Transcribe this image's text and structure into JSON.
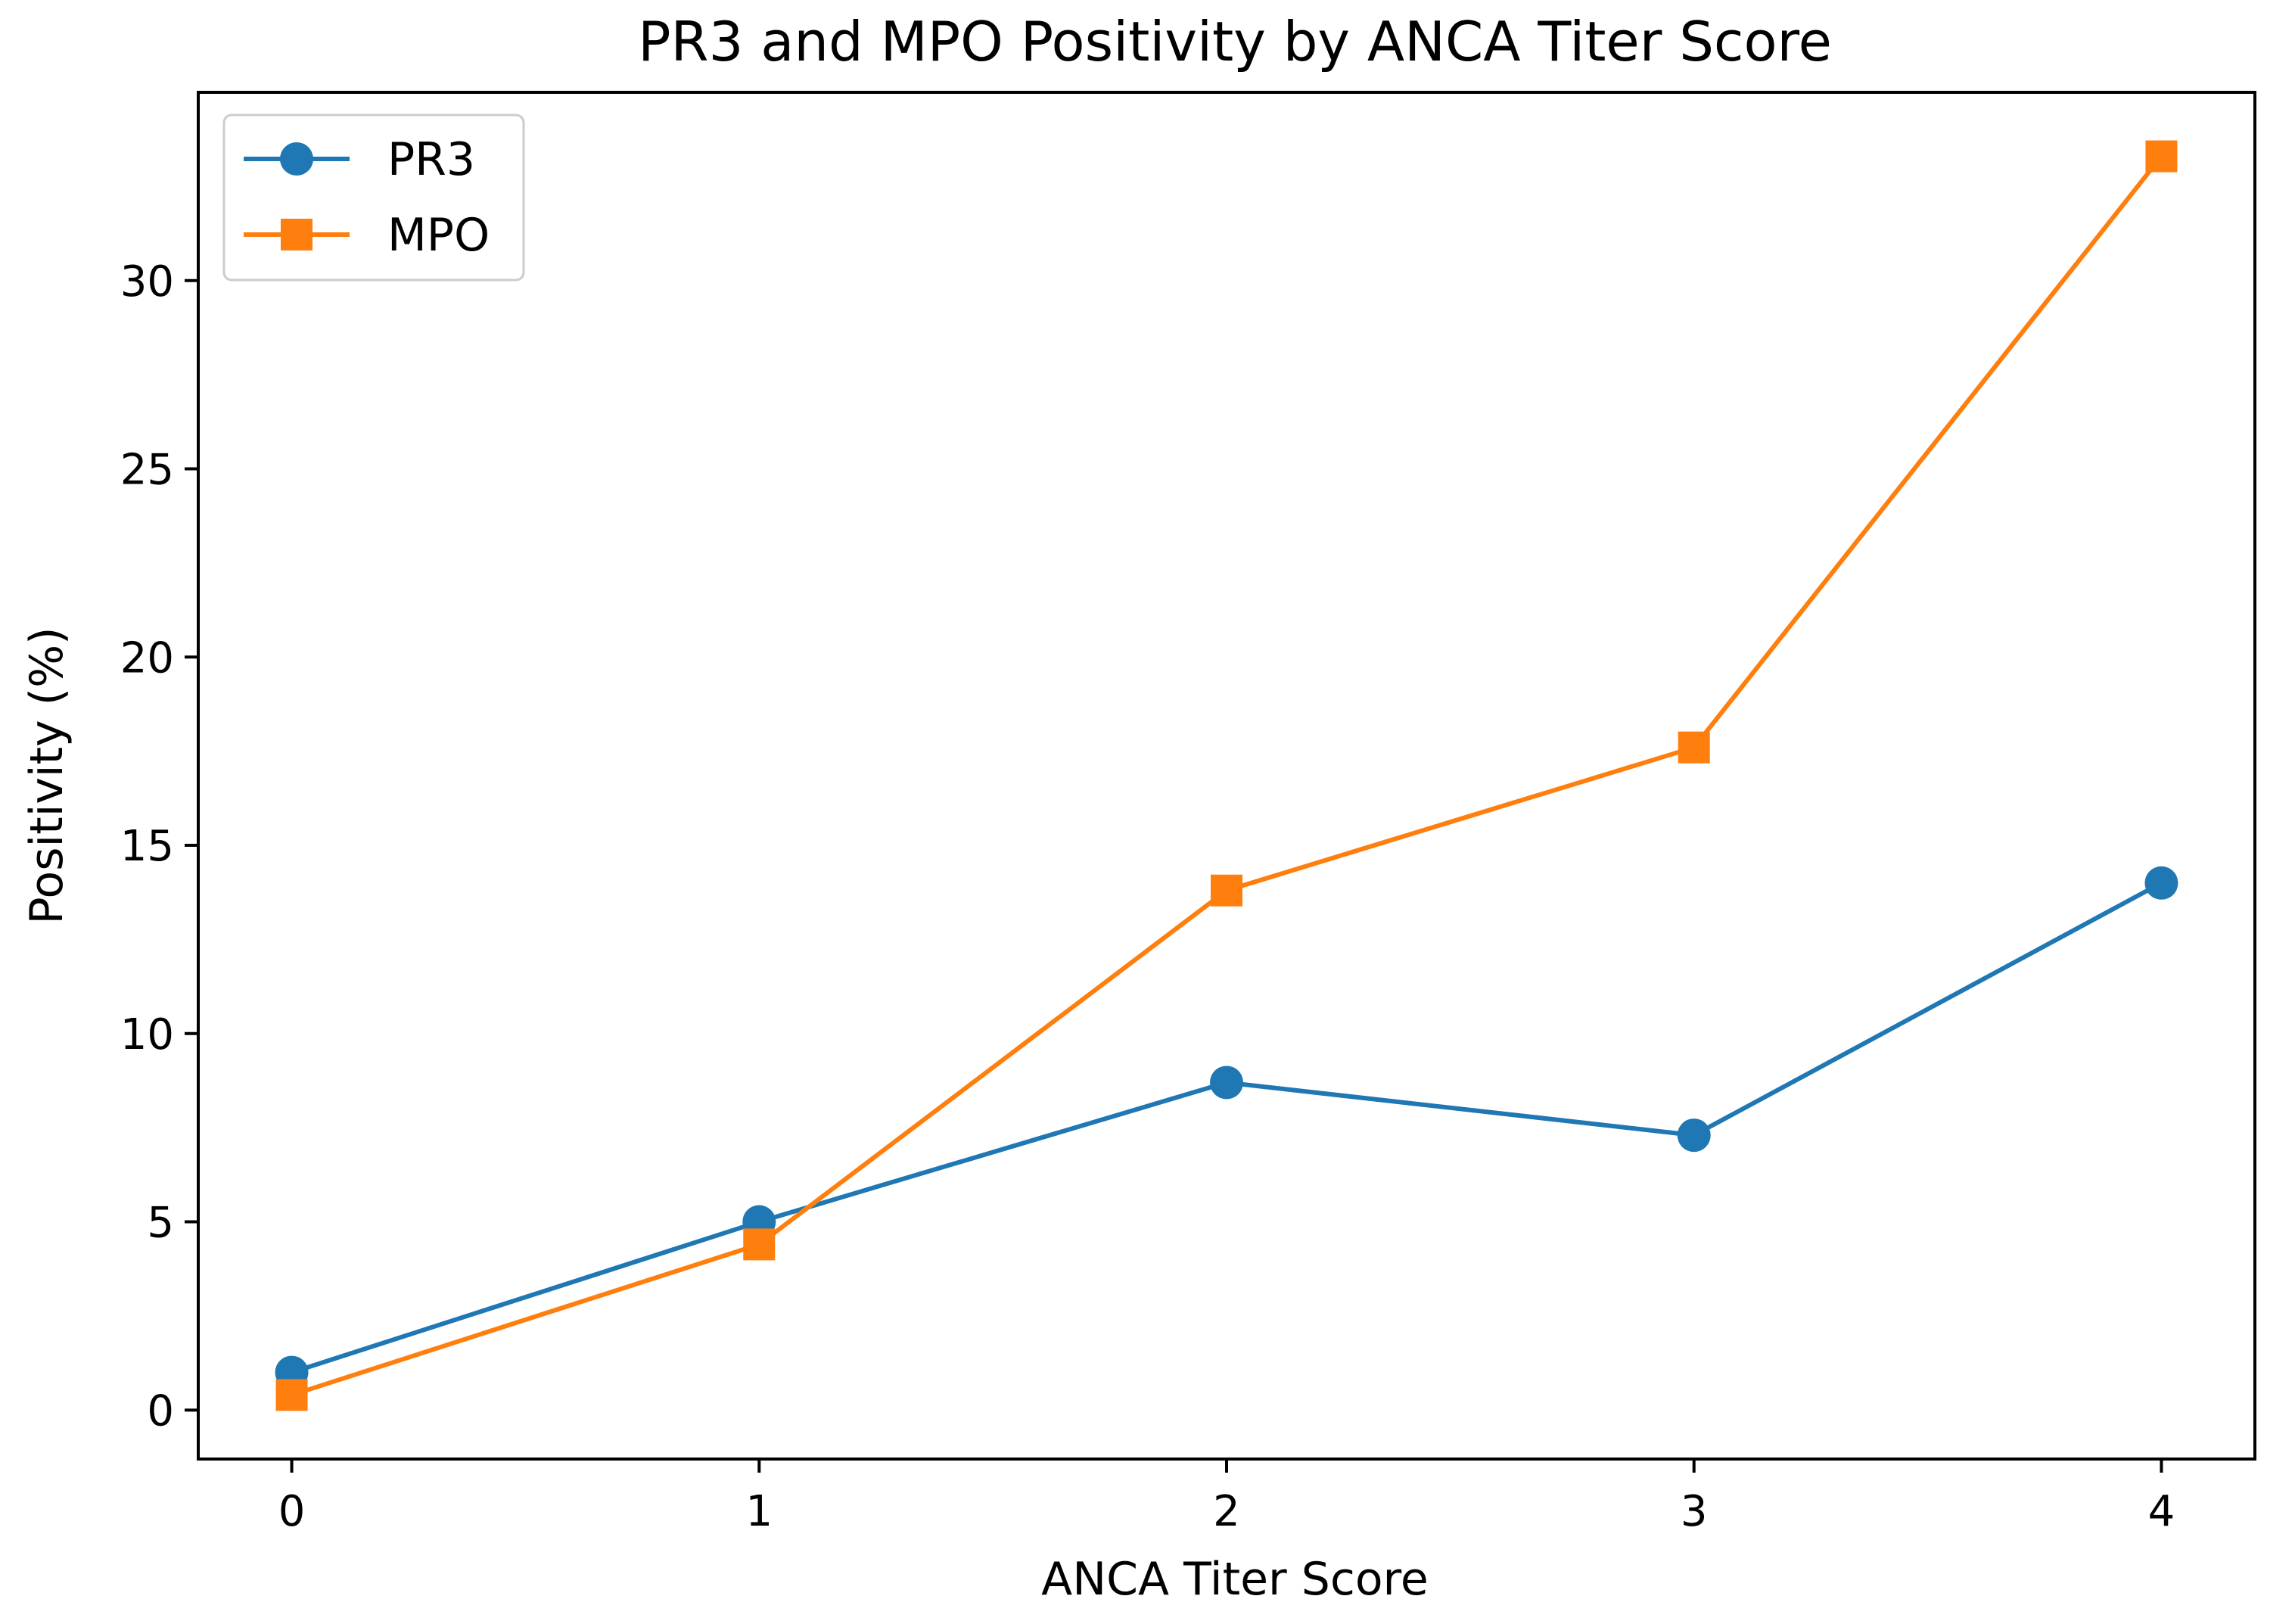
{
  "chart_data": {
    "type": "line",
    "title": "PR3 and MPO Positivity by ANCA Titer Score",
    "xlabel": "ANCA Titer Score",
    "ylabel": "Positivity (%)",
    "x": [
      0,
      1,
      2,
      3,
      4
    ],
    "xlim": [
      -0.2,
      4.2
    ],
    "ylim": [
      -1.3,
      35
    ],
    "xticks": [
      0,
      1,
      2,
      3,
      4
    ],
    "yticks": [
      0,
      5,
      10,
      15,
      20,
      25,
      30
    ],
    "grid": false,
    "legend_position": "top-left",
    "series": [
      {
        "name": "PR3",
        "marker": "circle",
        "color": "#1f77b4",
        "values": [
          1.0,
          5.0,
          8.7,
          7.3,
          14.0
        ]
      },
      {
        "name": "MPO",
        "marker": "square",
        "color": "#ff7f0e",
        "values": [
          0.4,
          4.4,
          13.8,
          17.6,
          33.3
        ]
      }
    ]
  }
}
